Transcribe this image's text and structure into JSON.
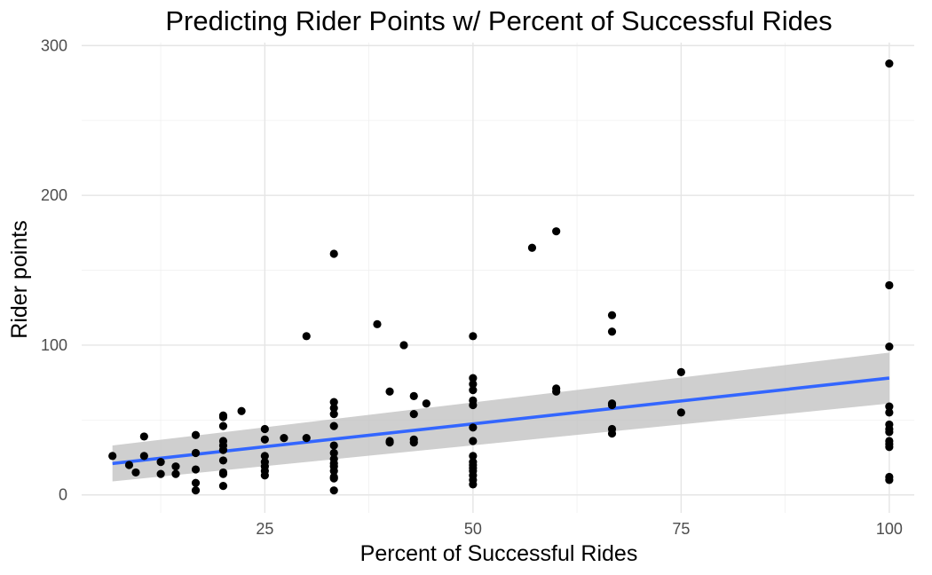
{
  "chart_data": {
    "type": "scatter",
    "title": "Predicting Rider Points w/ Percent of Successful Rides",
    "xlabel": "Percent of Successful Rides",
    "ylabel": "Rider points",
    "xlim": [
      3,
      103
    ],
    "ylim": [
      -12,
      302
    ],
    "x_ticks": [
      25,
      50,
      75,
      100
    ],
    "x_tick_labels": [
      "25",
      "50",
      "75",
      "100"
    ],
    "y_ticks": [
      0,
      100,
      200,
      300
    ],
    "y_tick_labels": [
      "0",
      "100",
      "200",
      "300"
    ],
    "grid": true,
    "colors": {
      "points": "#000000",
      "trend_line": "#3366ff",
      "confidence_band": "#bfbfbf",
      "grid": "#e5e5e5"
    },
    "points": [
      [
        6.7,
        26
      ],
      [
        8.7,
        20
      ],
      [
        9.5,
        15
      ],
      [
        10.5,
        39
      ],
      [
        10.5,
        26
      ],
      [
        12.5,
        22
      ],
      [
        12.5,
        14
      ],
      [
        14.3,
        19
      ],
      [
        14.3,
        14
      ],
      [
        16.7,
        40
      ],
      [
        16.7,
        28
      ],
      [
        16.7,
        17
      ],
      [
        16.7,
        8
      ],
      [
        16.7,
        3
      ],
      [
        20,
        53
      ],
      [
        20,
        52
      ],
      [
        20,
        46
      ],
      [
        20,
        36
      ],
      [
        20,
        33
      ],
      [
        20,
        30
      ],
      [
        20,
        23
      ],
      [
        20,
        15
      ],
      [
        20,
        14
      ],
      [
        20,
        6
      ],
      [
        22.2,
        56
      ],
      [
        25,
        44
      ],
      [
        25,
        37
      ],
      [
        25,
        26
      ],
      [
        25,
        22
      ],
      [
        25,
        19
      ],
      [
        25,
        16
      ],
      [
        25,
        13
      ],
      [
        27.3,
        38
      ],
      [
        30,
        106
      ],
      [
        30,
        38
      ],
      [
        33.3,
        161
      ],
      [
        33.3,
        62
      ],
      [
        33.3,
        58
      ],
      [
        33.3,
        54
      ],
      [
        33.3,
        46
      ],
      [
        33.3,
        33
      ],
      [
        33.3,
        28
      ],
      [
        33.3,
        24
      ],
      [
        33.3,
        21
      ],
      [
        33.3,
        19
      ],
      [
        33.3,
        16
      ],
      [
        33.3,
        12
      ],
      [
        33.3,
        11
      ],
      [
        33.3,
        3
      ],
      [
        38.5,
        114
      ],
      [
        40,
        69
      ],
      [
        40,
        36
      ],
      [
        40,
        35
      ],
      [
        41.7,
        100
      ],
      [
        42.9,
        66
      ],
      [
        42.9,
        54
      ],
      [
        42.9,
        37
      ],
      [
        42.9,
        35
      ],
      [
        44.4,
        61
      ],
      [
        50,
        106
      ],
      [
        50,
        78
      ],
      [
        50,
        74
      ],
      [
        50,
        70
      ],
      [
        50,
        63
      ],
      [
        50,
        60
      ],
      [
        50,
        45
      ],
      [
        50,
        36
      ],
      [
        50,
        26
      ],
      [
        50,
        22
      ],
      [
        50,
        20
      ],
      [
        50,
        18
      ],
      [
        50,
        16
      ],
      [
        50,
        13
      ],
      [
        50,
        10
      ],
      [
        50,
        7
      ],
      [
        57.1,
        165
      ],
      [
        60,
        176
      ],
      [
        60,
        71
      ],
      [
        60,
        69
      ],
      [
        66.7,
        120
      ],
      [
        66.7,
        109
      ],
      [
        66.7,
        61
      ],
      [
        66.7,
        60
      ],
      [
        66.7,
        44
      ],
      [
        66.7,
        41
      ],
      [
        75,
        82
      ],
      [
        75,
        55
      ],
      [
        100,
        288
      ],
      [
        100,
        140
      ],
      [
        100,
        99
      ],
      [
        100,
        59
      ],
      [
        100,
        55
      ],
      [
        100,
        47
      ],
      [
        100,
        44
      ],
      [
        100,
        42
      ],
      [
        100,
        36
      ],
      [
        100,
        34
      ],
      [
        100,
        32
      ],
      [
        100,
        12
      ],
      [
        100,
        10
      ]
    ],
    "trend_line": {
      "x": [
        6.7,
        100
      ],
      "y": [
        21,
        78
      ],
      "band_lower": [
        9,
        61
      ],
      "band_upper": [
        33,
        95
      ]
    }
  }
}
